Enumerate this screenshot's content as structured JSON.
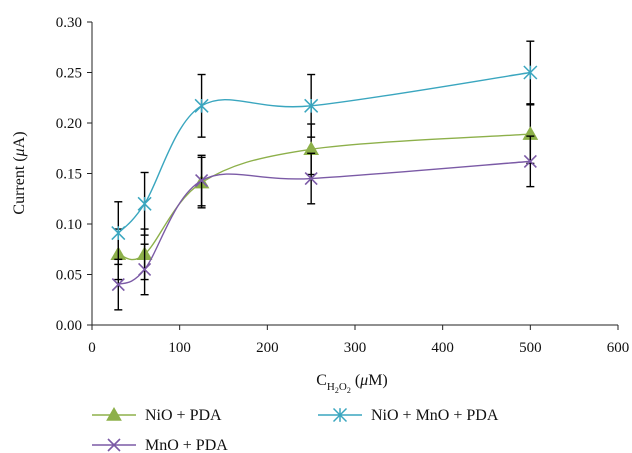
{
  "chart_data": {
    "type": "line",
    "title": "",
    "xlabel": {
      "base": "C",
      "subscript_main": "H",
      "subscript_2a": "2",
      "subscript_o": "O",
      "subscript_2b": "2",
      "unit_open": " (",
      "unit_mu": "μ",
      "unit_rest": "M)"
    },
    "ylabel": {
      "pre": "Current (",
      "mu": "μ",
      "post": "A)"
    },
    "xlim": [
      0,
      600
    ],
    "ylim": [
      0.0,
      0.3
    ],
    "xticks": [
      0,
      100,
      200,
      300,
      400,
      500,
      600
    ],
    "yticks": [
      0.0,
      0.05,
      0.1,
      0.15,
      0.2,
      0.25,
      0.3
    ],
    "xtick_labels": [
      "0",
      "100",
      "200",
      "300",
      "400",
      "500",
      "600"
    ],
    "ytick_labels": [
      "0.00",
      "0.05",
      "0.10",
      "0.15",
      "0.20",
      "0.25",
      "0.30"
    ],
    "grid": false,
    "legend_position": "bottom",
    "smooth": true,
    "series": [
      {
        "name": "NiO + PDA",
        "color": "#8db04a",
        "marker": "triangle",
        "x": [
          30,
          60,
          125,
          250,
          500
        ],
        "y": [
          0.07,
          0.07,
          0.141,
          0.174,
          0.189
        ],
        "err": [
          0.025,
          0.025,
          0.025,
          0.025,
          0.029
        ]
      },
      {
        "name": "MnO + PDA",
        "color": "#7b5aa6",
        "marker": "x",
        "x": [
          30,
          60,
          125,
          250,
          500
        ],
        "y": [
          0.04,
          0.055,
          0.143,
          0.145,
          0.162
        ],
        "err": [
          0.025,
          0.025,
          0.025,
          0.025,
          0.025
        ]
      },
      {
        "name": "NiO + MnO + PDA",
        "color": "#3aa6bf",
        "marker": "asterisk",
        "x": [
          30,
          60,
          125,
          250,
          500
        ],
        "y": [
          0.091,
          0.12,
          0.217,
          0.217,
          0.25
        ],
        "err": [
          0.031,
          0.031,
          0.031,
          0.031,
          0.031
        ]
      }
    ]
  }
}
